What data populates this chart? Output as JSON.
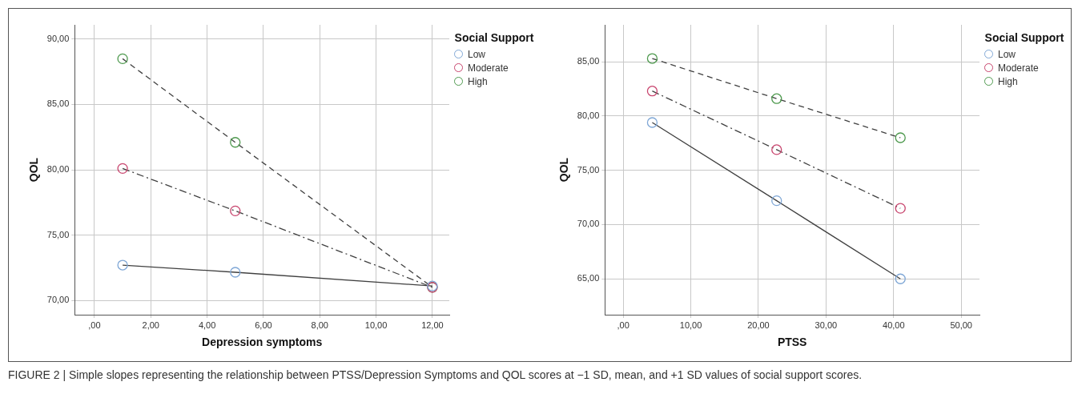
{
  "chart_data": [
    {
      "type": "scatter",
      "xlabel": "Depression symptoms",
      "ylabel": "QOL",
      "legend_title": "Social Support",
      "legend": "top right",
      "grid": true,
      "marker": "circle",
      "x": [
        1,
        5,
        12
      ],
      "xlim": [
        -0.7,
        12.6
      ],
      "ylim": [
        68.9,
        91.1
      ],
      "xticks": [
        {
          "value": 0,
          "label": ",00"
        },
        {
          "value": 2,
          "label": "2,00"
        },
        {
          "value": 4,
          "label": "4,00"
        },
        {
          "value": 6,
          "label": "6,00"
        },
        {
          "value": 8,
          "label": "8,00"
        },
        {
          "value": 10,
          "label": "10,00"
        },
        {
          "value": 12,
          "label": "12,00"
        }
      ],
      "yticks": [
        {
          "value": 70,
          "label": "70,00"
        },
        {
          "value": 75,
          "label": "75,00"
        },
        {
          "value": 80,
          "label": "80,00"
        },
        {
          "value": 85,
          "label": "85,00"
        },
        {
          "value": 90,
          "label": "90,00"
        }
      ],
      "series": [
        {
          "type": "line",
          "marker": "none",
          "color": "#404040",
          "line_style": "solid",
          "values": [
            72.7,
            72.15,
            71.1
          ]
        },
        {
          "type": "line",
          "marker": "none",
          "color": "#404040",
          "line_style": "dashdot",
          "values": [
            80.1,
            76.85,
            71.0
          ]
        },
        {
          "type": "line",
          "marker": "none",
          "color": "#404040",
          "line_style": "dashed",
          "values": [
            88.5,
            82.1,
            71.0
          ]
        },
        {
          "name": "Low",
          "color": "#7fa7d6",
          "values": [
            72.7,
            72.15,
            71.1
          ]
        },
        {
          "name": "Moderate",
          "color": "#c8456e",
          "values": [
            80.1,
            76.85,
            71.0
          ]
        },
        {
          "name": "High",
          "color": "#4f9a4f",
          "values": [
            88.5,
            82.1,
            71.0
          ]
        }
      ]
    },
    {
      "type": "scatter",
      "xlabel": "PTSS",
      "ylabel": "QOL",
      "legend_title": "Social Support",
      "legend": "top right",
      "grid": true,
      "marker": "circle",
      "x": [
        4.3,
        22.7,
        41.0
      ],
      "xlim": [
        -2.7,
        52.7
      ],
      "ylim": [
        61.7,
        88.4
      ],
      "xticks": [
        {
          "value": 0,
          "label": ",00"
        },
        {
          "value": 10,
          "label": "10,00"
        },
        {
          "value": 20,
          "label": "20,00"
        },
        {
          "value": 30,
          "label": "30,00"
        },
        {
          "value": 40,
          "label": "40,00"
        },
        {
          "value": 50,
          "label": "50,00"
        }
      ],
      "yticks": [
        {
          "value": 65,
          "label": "65,00"
        },
        {
          "value": 70,
          "label": "70,00"
        },
        {
          "value": 75,
          "label": "75,00"
        },
        {
          "value": 80,
          "label": "80,00"
        },
        {
          "value": 85,
          "label": "85,00"
        }
      ],
      "series": [
        {
          "type": "line",
          "marker": "none",
          "color": "#404040",
          "line_style": "solid",
          "values": [
            79.4,
            72.2,
            65.0
          ]
        },
        {
          "type": "line",
          "marker": "none",
          "color": "#404040",
          "line_style": "dashdot",
          "values": [
            82.3,
            76.9,
            71.5
          ]
        },
        {
          "type": "line",
          "marker": "none",
          "color": "#404040",
          "line_style": "dashed",
          "values": [
            85.3,
            81.6,
            78.0
          ]
        },
        {
          "name": "Low",
          "color": "#7fa7d6",
          "values": [
            79.4,
            72.2,
            65.0
          ]
        },
        {
          "name": "Moderate",
          "color": "#c8456e",
          "values": [
            82.3,
            76.9,
            71.5
          ]
        },
        {
          "name": "High",
          "color": "#4f9a4f",
          "values": [
            85.3,
            81.6,
            78.0
          ]
        }
      ],
      "annotations": [
        "FIGURE 2 | Simple slopes representing the relationship between PTSS/Depression Symptoms and QOL scores at −1 SD, mean, and +1 SD values of social support scores."
      ]
    }
  ]
}
